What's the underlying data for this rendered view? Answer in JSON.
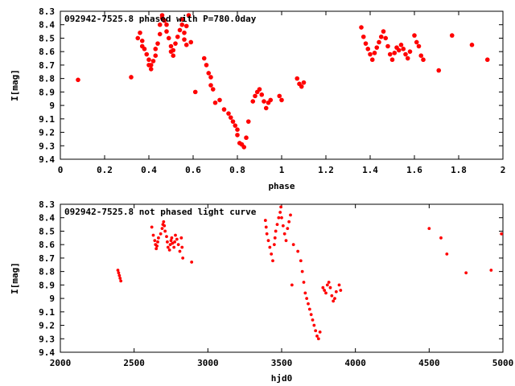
{
  "charts": [
    {
      "title": "092942-7525.8 phased with P=780.0day",
      "xlabel": "phase",
      "ylabel": "I[mag]",
      "xticks": [
        "0",
        "0.2",
        "0.4",
        "0.6",
        "0.8",
        "1",
        "1.2",
        "1.4",
        "1.6",
        "1.8",
        "2"
      ],
      "yticks": [
        "8.3",
        "8.4",
        "8.5",
        "8.6",
        "8.7",
        "8.8",
        "8.9",
        "9",
        "9.1",
        "9.2",
        "9.3",
        "9.4"
      ]
    },
    {
      "title": "092942-7525.8 not phased light curve",
      "xlabel": "hjd0",
      "ylabel": "I[mag]",
      "xticks": [
        "2000",
        "2500",
        "3000",
        "3500",
        "4000",
        "4500",
        "5000"
      ],
      "yticks": [
        "8.3",
        "8.4",
        "8.5",
        "8.6",
        "8.7",
        "8.8",
        "8.9",
        "9",
        "9.1",
        "9.2",
        "9.3",
        "9.4"
      ]
    }
  ],
  "chart_data": [
    {
      "type": "scatter",
      "title": "092942-7525.8 phased with P=780.0day",
      "xlabel": "phase",
      "ylabel": "I[mag]",
      "xlim": [
        0,
        2
      ],
      "ylim": [
        9.4,
        8.3
      ],
      "y_axis_inverted": true,
      "grid": false,
      "marker_color": "#ff0000",
      "x": [
        0.08,
        0.32,
        0.35,
        0.36,
        0.37,
        0.37,
        0.38,
        0.39,
        0.4,
        0.4,
        0.41,
        0.41,
        0.42,
        0.43,
        0.43,
        0.44,
        0.45,
        0.45,
        0.46,
        0.46,
        0.47,
        0.48,
        0.48,
        0.49,
        0.5,
        0.5,
        0.51,
        0.51,
        0.52,
        0.53,
        0.54,
        0.55,
        0.55,
        0.56,
        0.56,
        0.57,
        0.57,
        0.58,
        0.59,
        0.61,
        0.65,
        0.66,
        0.67,
        0.68,
        0.68,
        0.69,
        0.7,
        0.72,
        0.74,
        0.76,
        0.77,
        0.78,
        0.79,
        0.8,
        0.8,
        0.81,
        0.82,
        0.83,
        0.84,
        0.85,
        0.87,
        0.88,
        0.89,
        0.9,
        0.91,
        0.92,
        0.93,
        0.94,
        0.95,
        0.99,
        1.0,
        1.07,
        1.08,
        1.09,
        1.1,
        1.36,
        1.37,
        1.38,
        1.39,
        1.4,
        1.41,
        1.42,
        1.43,
        1.44,
        1.45,
        1.46,
        1.47,
        1.48,
        1.49,
        1.5,
        1.51,
        1.52,
        1.53,
        1.54,
        1.55,
        1.56,
        1.57,
        1.58,
        1.6,
        1.61,
        1.62,
        1.63,
        1.64,
        1.71,
        1.77,
        1.86,
        1.93
      ],
      "y": [
        8.81,
        8.79,
        8.5,
        8.46,
        8.52,
        8.56,
        8.58,
        8.62,
        8.66,
        8.7,
        8.73,
        8.7,
        8.67,
        8.63,
        8.58,
        8.54,
        8.47,
        8.4,
        8.35,
        8.33,
        8.37,
        8.4,
        8.45,
        8.5,
        8.56,
        8.6,
        8.63,
        8.59,
        8.54,
        8.49,
        8.44,
        8.4,
        8.36,
        8.46,
        8.51,
        8.55,
        8.41,
        8.33,
        8.53,
        8.9,
        8.65,
        8.7,
        8.76,
        8.79,
        8.85,
        8.88,
        8.98,
        8.96,
        9.03,
        9.06,
        9.09,
        9.12,
        9.15,
        9.18,
        9.22,
        9.28,
        9.29,
        9.31,
        9.24,
        9.12,
        8.97,
        8.93,
        8.9,
        8.88,
        8.92,
        8.97,
        9.02,
        8.98,
        8.96,
        8.93,
        8.96,
        8.8,
        8.84,
        8.86,
        8.83,
        8.42,
        8.49,
        8.54,
        8.58,
        8.62,
        8.66,
        8.61,
        8.57,
        8.53,
        8.49,
        8.45,
        8.5,
        8.56,
        8.62,
        8.66,
        8.61,
        8.57,
        8.59,
        8.55,
        8.58,
        8.62,
        8.65,
        8.6,
        8.48,
        8.53,
        8.56,
        8.63,
        8.66,
        8.74,
        8.48,
        8.55,
        8.66
      ]
    },
    {
      "type": "scatter",
      "title": "092942-7525.8 not phased light curve",
      "xlabel": "hjd0",
      "ylabel": "I[mag]",
      "xlim": [
        2000,
        5000
      ],
      "ylim": [
        9.4,
        8.3
      ],
      "y_axis_inverted": true,
      "grid": false,
      "marker_color": "#ff0000",
      "x": [
        2390,
        2395,
        2400,
        2405,
        2410,
        2620,
        2630,
        2640,
        2645,
        2650,
        2655,
        2660,
        2665,
        2680,
        2690,
        2695,
        2700,
        2705,
        2710,
        2720,
        2725,
        2730,
        2740,
        2745,
        2750,
        2755,
        2760,
        2770,
        2775,
        2780,
        2790,
        2800,
        2810,
        2820,
        2825,
        2830,
        2890,
        3390,
        3395,
        3400,
        3410,
        3420,
        3430,
        3440,
        3450,
        3455,
        3460,
        3470,
        3480,
        3490,
        3495,
        3500,
        3510,
        3520,
        3530,
        3540,
        3550,
        3560,
        3570,
        3580,
        3610,
        3630,
        3640,
        3650,
        3660,
        3670,
        3680,
        3690,
        3700,
        3710,
        3720,
        3730,
        3740,
        3750,
        3760,
        3780,
        3790,
        3800,
        3810,
        3820,
        3830,
        3840,
        3850,
        3860,
        3870,
        3890,
        3900,
        4500,
        4580,
        4620,
        4750,
        4920,
        4990
      ],
      "y": [
        8.79,
        8.81,
        8.83,
        8.85,
        8.87,
        8.47,
        8.53,
        8.57,
        8.6,
        8.63,
        8.61,
        8.58,
        8.55,
        8.52,
        8.48,
        8.45,
        8.43,
        8.46,
        8.5,
        8.54,
        8.58,
        8.62,
        8.64,
        8.6,
        8.57,
        8.55,
        8.59,
        8.62,
        8.58,
        8.53,
        8.56,
        8.6,
        8.65,
        8.55,
        8.62,
        8.7,
        8.73,
        8.42,
        8.47,
        8.52,
        8.57,
        8.62,
        8.67,
        8.72,
        8.6,
        8.55,
        8.5,
        8.45,
        8.4,
        8.36,
        8.32,
        8.4,
        8.46,
        8.52,
        8.57,
        8.48,
        8.43,
        8.38,
        8.9,
        8.6,
        8.65,
        8.72,
        8.8,
        8.88,
        8.96,
        9.0,
        9.04,
        9.08,
        9.12,
        9.16,
        9.2,
        9.24,
        9.28,
        9.3,
        9.25,
        8.92,
        8.94,
        8.96,
        8.9,
        8.88,
        8.92,
        8.98,
        9.02,
        9.0,
        8.95,
        8.9,
        8.94,
        8.48,
        8.55,
        8.67,
        8.81,
        8.79,
        8.52
      ]
    }
  ]
}
